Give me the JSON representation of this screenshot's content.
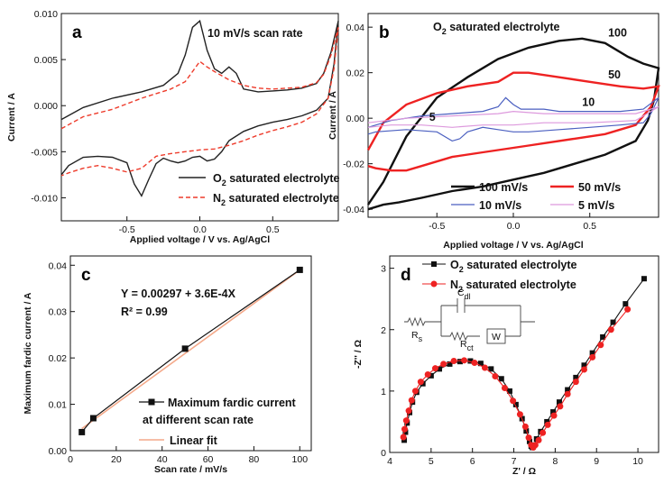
{
  "chart_data": [
    {
      "panel": "a",
      "type": "line",
      "annotation": "10 mV/s scan rate",
      "xlabel": "Applied voltage / V vs. Ag/AgCl",
      "ylabel": "Current / A",
      "xlim": [
        -0.95,
        0.95
      ],
      "ylim": [
        -0.0125,
        0.01
      ],
      "xticks": [
        -0.5,
        0.0,
        0.5
      ],
      "xtick_labels": [
        "-0.5",
        "0.0",
        "0.5"
      ],
      "yticks": [
        -0.01,
        -0.005,
        0.0,
        0.005,
        0.01
      ],
      "ytick_labels": [
        "-0.010",
        "-0.005",
        "0.000",
        "0.005",
        "0.010"
      ],
      "legend_position": "bottom-right",
      "colors": {
        "o2": "#222222",
        "n2": "#ee3b2b"
      },
      "series": [
        {
          "name": "O",
          "sub": "2",
          "suffix": " saturated electrolyte",
          "color": "#222222",
          "dashed": false,
          "x": [
            -0.95,
            -0.8,
            -0.6,
            -0.4,
            -0.25,
            -0.15,
            -0.1,
            -0.05,
            0.0,
            0.05,
            0.1,
            0.15,
            0.2,
            0.25,
            0.3,
            0.4,
            0.5,
            0.6,
            0.7,
            0.8,
            0.85,
            0.9,
            0.95,
            0.92,
            0.88,
            0.8,
            0.7,
            0.6,
            0.5,
            0.4,
            0.3,
            0.2,
            0.15,
            0.1,
            0.05,
            0.0,
            -0.05,
            -0.1,
            -0.15,
            -0.2,
            -0.25,
            -0.3,
            -0.35,
            -0.4,
            -0.45,
            -0.5,
            -0.6,
            -0.7,
            -0.8,
            -0.9,
            -0.95
          ],
          "y": [
            -0.0015,
            -0.0002,
            0.0008,
            0.0015,
            0.0022,
            0.0035,
            0.0055,
            0.0085,
            0.0092,
            0.006,
            0.004,
            0.0035,
            0.0042,
            0.0035,
            0.0018,
            0.0015,
            0.0016,
            0.0017,
            0.0019,
            0.0024,
            0.0035,
            0.0058,
            0.0092,
            0.0045,
            0.0008,
            -0.0005,
            -0.0011,
            -0.0015,
            -0.0018,
            -0.0022,
            -0.0028,
            -0.0038,
            -0.005,
            -0.0058,
            -0.006,
            -0.0055,
            -0.0056,
            -0.006,
            -0.0062,
            -0.006,
            -0.0057,
            -0.0063,
            -0.008,
            -0.0098,
            -0.0085,
            -0.0062,
            -0.0056,
            -0.0055,
            -0.0056,
            -0.0065,
            -0.0075
          ]
        },
        {
          "name": "N",
          "sub": "2",
          "suffix": " saturated electrolyte",
          "color": "#ee3b2b",
          "dashed": true,
          "x": [
            -0.95,
            -0.8,
            -0.6,
            -0.4,
            -0.2,
            -0.1,
            0.0,
            0.05,
            0.1,
            0.2,
            0.3,
            0.4,
            0.5,
            0.6,
            0.7,
            0.8,
            0.85,
            0.9,
            0.95,
            0.92,
            0.88,
            0.8,
            0.7,
            0.6,
            0.5,
            0.4,
            0.3,
            0.2,
            0.1,
            0.0,
            -0.1,
            -0.2,
            -0.3,
            -0.4,
            -0.5,
            -0.6,
            -0.7,
            -0.8,
            -0.9,
            -0.95
          ],
          "y": [
            -0.0025,
            -0.0012,
            -0.0004,
            0.0008,
            0.0018,
            0.0026,
            0.0048,
            0.0042,
            0.0037,
            0.0028,
            0.0022,
            0.0019,
            0.0018,
            0.0019,
            0.002,
            0.0025,
            0.0034,
            0.0055,
            0.0085,
            0.004,
            0.0008,
            -0.0009,
            -0.0018,
            -0.0023,
            -0.0027,
            -0.0032,
            -0.0038,
            -0.0043,
            -0.0047,
            -0.0048,
            -0.005,
            -0.0052,
            -0.0055,
            -0.0068,
            -0.0072,
            -0.0068,
            -0.0065,
            -0.0068,
            -0.0073,
            -0.0076
          ]
        }
      ]
    },
    {
      "panel": "b",
      "type": "line",
      "annotation": {
        "pre": "O",
        "sub": "2",
        "post": " saturated electrolyte"
      },
      "xlabel": "Applied voltage / V vs. Ag/AgCl",
      "ylabel": "Current / A",
      "xlim": [
        -0.95,
        0.95
      ],
      "ylim": [
        -0.0435,
        0.046
      ],
      "xticks": [
        -0.5,
        0.0,
        0.5
      ],
      "xtick_labels": [
        "-0.5",
        "0.0",
        "0.5"
      ],
      "yticks": [
        -0.04,
        -0.02,
        0.0,
        0.02,
        0.04
      ],
      "ytick_labels": [
        "-0.04",
        "-0.02",
        "0.00",
        "0.02",
        "0.04"
      ],
      "curve_labels": [
        "100",
        "50",
        "10",
        "5"
      ],
      "legend_position": "bottom-right",
      "colors": {
        "100": "#111111",
        "50": "#ee2222",
        "10": "#4a5fc0",
        "5": "#dd99dd"
      },
      "series": [
        {
          "name": "100 mV/s",
          "label": "100",
          "color": "#111111",
          "width": 2.4,
          "x": [
            -0.95,
            -0.85,
            -0.7,
            -0.5,
            -0.3,
            -0.1,
            0.1,
            0.3,
            0.45,
            0.6,
            0.75,
            0.85,
            0.95,
            0.92,
            0.88,
            0.8,
            0.6,
            0.4,
            0.2,
            0.0,
            -0.2,
            -0.4,
            -0.6,
            -0.75,
            -0.85,
            -0.95
          ],
          "y": [
            -0.038,
            -0.028,
            -0.008,
            0.009,
            0.018,
            0.026,
            0.031,
            0.034,
            0.035,
            0.033,
            0.027,
            0.024,
            0.022,
            0.008,
            -0.001,
            -0.01,
            -0.016,
            -0.02,
            -0.024,
            -0.027,
            -0.03,
            -0.032,
            -0.035,
            -0.037,
            -0.038,
            -0.04
          ]
        },
        {
          "name": "50 mV/s",
          "label": "50",
          "color": "#ee2222",
          "width": 2.4,
          "x": [
            -0.95,
            -0.85,
            -0.7,
            -0.5,
            -0.3,
            -0.1,
            0.0,
            0.1,
            0.3,
            0.5,
            0.7,
            0.85,
            0.95,
            0.9,
            0.8,
            0.6,
            0.4,
            0.2,
            0.1,
            0.0,
            -0.2,
            -0.4,
            -0.6,
            -0.7,
            -0.8,
            -0.9,
            -0.95
          ],
          "y": [
            -0.014,
            -0.002,
            0.006,
            0.011,
            0.014,
            0.016,
            0.02,
            0.02,
            0.018,
            0.016,
            0.014,
            0.013,
            0.014,
            0.005,
            -0.003,
            -0.007,
            -0.009,
            -0.011,
            -0.012,
            -0.013,
            -0.015,
            -0.017,
            -0.021,
            -0.023,
            -0.023,
            -0.022,
            -0.021
          ]
        },
        {
          "name": "10 mV/s",
          "label": "10",
          "color": "#4a5fc0",
          "width": 1.2,
          "x": [
            -0.95,
            -0.8,
            -0.6,
            -0.4,
            -0.2,
            -0.1,
            -0.05,
            0.0,
            0.05,
            0.1,
            0.2,
            0.3,
            0.5,
            0.7,
            0.85,
            0.95,
            0.9,
            0.85,
            0.7,
            0.5,
            0.3,
            0.1,
            0.0,
            -0.1,
            -0.2,
            -0.3,
            -0.35,
            -0.4,
            -0.5,
            -0.7,
            -0.9,
            -0.95
          ],
          "y": [
            -0.004,
            -0.001,
            0.001,
            0.002,
            0.003,
            0.005,
            0.009,
            0.006,
            0.004,
            0.004,
            0.004,
            0.003,
            0.003,
            0.003,
            0.004,
            0.009,
            0.002,
            -0.002,
            -0.003,
            -0.004,
            -0.005,
            -0.006,
            -0.006,
            -0.005,
            -0.004,
            -0.006,
            -0.009,
            -0.01,
            -0.006,
            -0.005,
            -0.006,
            -0.007
          ]
        },
        {
          "name": "5 mV/s",
          "label": "5",
          "color": "#dd99dd",
          "width": 1.2,
          "x": [
            -0.95,
            -0.7,
            -0.4,
            -0.1,
            0.0,
            0.2,
            0.5,
            0.8,
            0.95,
            0.8,
            0.5,
            0.2,
            0.0,
            -0.2,
            -0.4,
            -0.6,
            -0.8,
            -0.95
          ],
          "y": [
            -0.002,
            0.0,
            0.001,
            0.002,
            0.003,
            0.002,
            0.002,
            0.002,
            0.005,
            -0.001,
            -0.002,
            -0.002,
            -0.003,
            -0.003,
            -0.004,
            -0.003,
            -0.003,
            -0.004
          ]
        }
      ]
    },
    {
      "panel": "c",
      "type": "scatter",
      "annotation": {
        "equation": "Y = 0.00297 + 3.6E-4X",
        "r2": "R² = 0.99"
      },
      "xlabel": "Scan rate / mV/s",
      "ylabel": "Maximum fardic current / A",
      "xlim": [
        0,
        105
      ],
      "ylim": [
        0,
        0.042
      ],
      "xticks": [
        0,
        20,
        40,
        60,
        80,
        100
      ],
      "xtick_labels": [
        "0",
        "20",
        "40",
        "60",
        "80",
        "100"
      ],
      "yticks": [
        0.0,
        0.01,
        0.02,
        0.03,
        0.04
      ],
      "ytick_labels": [
        "0.00",
        "0.01",
        "0.02",
        "0.03",
        "0.04"
      ],
      "legend_position": "bottom-right",
      "colors": {
        "data": "#111111",
        "fit": "#f4a98a",
        "equation": "#2233aa"
      },
      "series": [
        {
          "name": "Maximum fardic current",
          "name2": "at different scan rate",
          "color": "#111111",
          "x": [
            5,
            10,
            50,
            100
          ],
          "y": [
            0.004,
            0.007,
            0.022,
            0.039
          ]
        },
        {
          "name": "Linear fit",
          "color": "#f4a98a",
          "x": [
            5,
            100
          ],
          "y": [
            0.00477,
            0.03897
          ]
        }
      ]
    },
    {
      "panel": "d",
      "type": "scatter",
      "xlabel": "Z' / Ω",
      "ylabel": "-Z'' / Ω",
      "xlim": [
        4,
        10.5
      ],
      "ylim": [
        0,
        3.2
      ],
      "xticks": [
        4,
        5,
        6,
        7,
        8,
        9,
        10
      ],
      "xtick_labels": [
        "4",
        "5",
        "6",
        "7",
        "8",
        "9",
        "10"
      ],
      "yticks": [
        0,
        1,
        2,
        3
      ],
      "ytick_labels": [
        "0",
        "1",
        "2",
        "3"
      ],
      "legend_position": "top-right",
      "circuit_labels": [
        "R",
        "s",
        "C",
        "dl",
        "R",
        "ct",
        "W"
      ],
      "colors": {
        "o2": "#111111",
        "n2": "#ee2222"
      },
      "series": [
        {
          "name": "O",
          "sub": "2",
          "suffix": " saturated electrolyte",
          "color": "#111111",
          "marker": "square",
          "x": [
            4.35,
            4.38,
            4.42,
            4.48,
            4.55,
            4.65,
            4.8,
            5.0,
            5.2,
            5.45,
            5.7,
            5.95,
            6.2,
            6.45,
            6.7,
            6.9,
            7.05,
            7.2,
            7.3,
            7.38,
            7.42,
            7.45,
            7.48,
            7.55,
            7.65,
            7.8,
            7.95,
            8.1,
            8.3,
            8.5,
            8.7,
            8.9,
            9.15,
            9.4,
            9.7,
            10.15
          ],
          "y": [
            0.2,
            0.33,
            0.48,
            0.65,
            0.82,
            0.98,
            1.12,
            1.25,
            1.36,
            1.44,
            1.48,
            1.49,
            1.45,
            1.36,
            1.2,
            1.0,
            0.78,
            0.55,
            0.35,
            0.18,
            0.1,
            0.08,
            0.12,
            0.22,
            0.34,
            0.5,
            0.66,
            0.82,
            1.02,
            1.22,
            1.42,
            1.62,
            1.88,
            2.12,
            2.42,
            2.83
          ]
        },
        {
          "name": "N",
          "sub": "2",
          "suffix": " saturated electrolyte",
          "color": "#ee2222",
          "marker": "circle",
          "x": [
            4.33,
            4.36,
            4.4,
            4.46,
            4.53,
            4.62,
            4.75,
            4.92,
            5.1,
            5.3,
            5.55,
            5.8,
            6.05,
            6.3,
            6.55,
            6.78,
            6.98,
            7.15,
            7.28,
            7.36,
            7.42,
            7.47,
            7.52,
            7.6,
            7.7,
            7.82,
            7.97,
            8.12,
            8.3,
            8.5,
            8.7,
            8.9,
            9.1,
            9.35,
            9.75
          ],
          "y": [
            0.25,
            0.38,
            0.52,
            0.68,
            0.85,
            1.0,
            1.15,
            1.27,
            1.37,
            1.44,
            1.49,
            1.5,
            1.46,
            1.38,
            1.24,
            1.05,
            0.84,
            0.62,
            0.42,
            0.24,
            0.12,
            0.08,
            0.12,
            0.2,
            0.32,
            0.45,
            0.6,
            0.75,
            0.95,
            1.15,
            1.35,
            1.55,
            1.75,
            2.0,
            2.33
          ]
        }
      ]
    }
  ]
}
